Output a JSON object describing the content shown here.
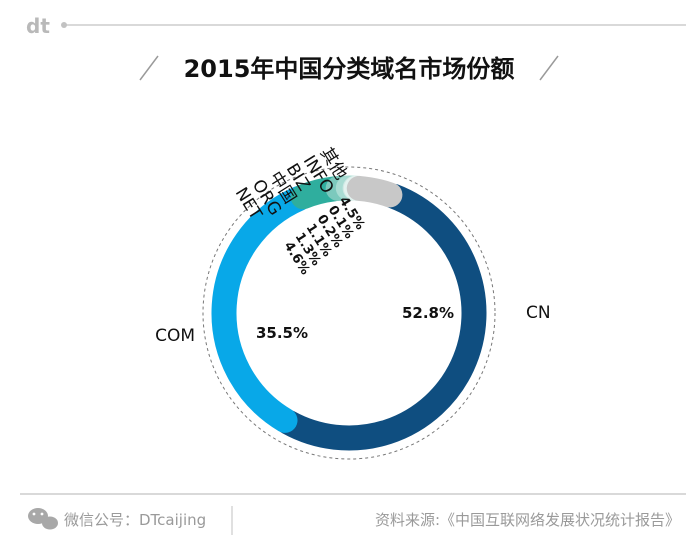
{
  "brand": {
    "logo": "dt"
  },
  "footer": {
    "left_text": "微信公号：DTcaijing",
    "right_text": "资料来源:《中国互联网络发展状况统计报告》"
  },
  "chart_data": {
    "type": "pie",
    "title": "2015年中国分类域名市场份额",
    "categories": [
      "CN",
      "COM",
      "NET",
      "ORG",
      "中国",
      "BIZ",
      "INFO",
      "其他"
    ],
    "values": [
      52.8,
      35.5,
      4.6,
      1.3,
      1.1,
      0.2,
      0.1,
      4.5
    ],
    "value_labels": [
      "52.8%",
      "35.5%",
      "4.6%",
      "1.3%",
      "1.1%",
      "0.2%",
      "0.1%",
      "4.5%"
    ],
    "colors": [
      "#0f4e80",
      "#08a8e8",
      "#2fae9e",
      "#7cc9bd",
      "#a9dcd3",
      "#cfe9e4",
      "#e3f2ef",
      "#c8c8c8"
    ],
    "style": "donut",
    "legend": "none"
  }
}
